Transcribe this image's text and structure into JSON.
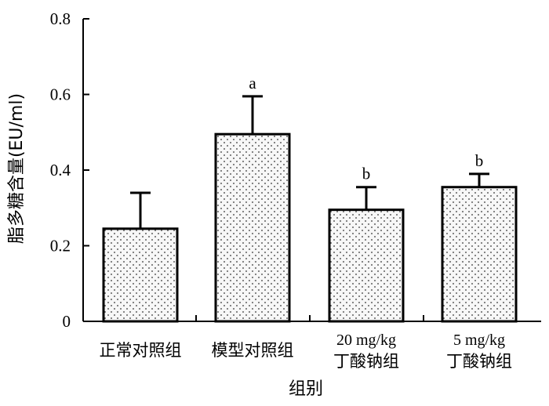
{
  "chart_data": {
    "type": "bar",
    "xlabel": "组别",
    "ylabel": "脂多糖含量(EU/ml)",
    "ylim": [
      0,
      0.8
    ],
    "yticks": [
      "0",
      "0.2",
      "0.4",
      "0.6",
      "0.8"
    ],
    "categories": [
      [
        "正常对照组"
      ],
      [
        "模型对照组"
      ],
      [
        "20 mg/kg",
        "丁酸钠组"
      ],
      [
        "5 mg/kg",
        "丁酸钠组"
      ]
    ],
    "values": [
      0.245,
      0.495,
      0.295,
      0.355
    ],
    "error_upper": [
      0.095,
      0.1,
      0.06,
      0.035
    ],
    "significance": [
      "",
      "a",
      "b",
      "b"
    ],
    "bar_fill": "dotted pattern",
    "colors": {
      "bar_fill": "#f7f7f7",
      "dots": "#333333",
      "stroke": "#000000"
    }
  }
}
